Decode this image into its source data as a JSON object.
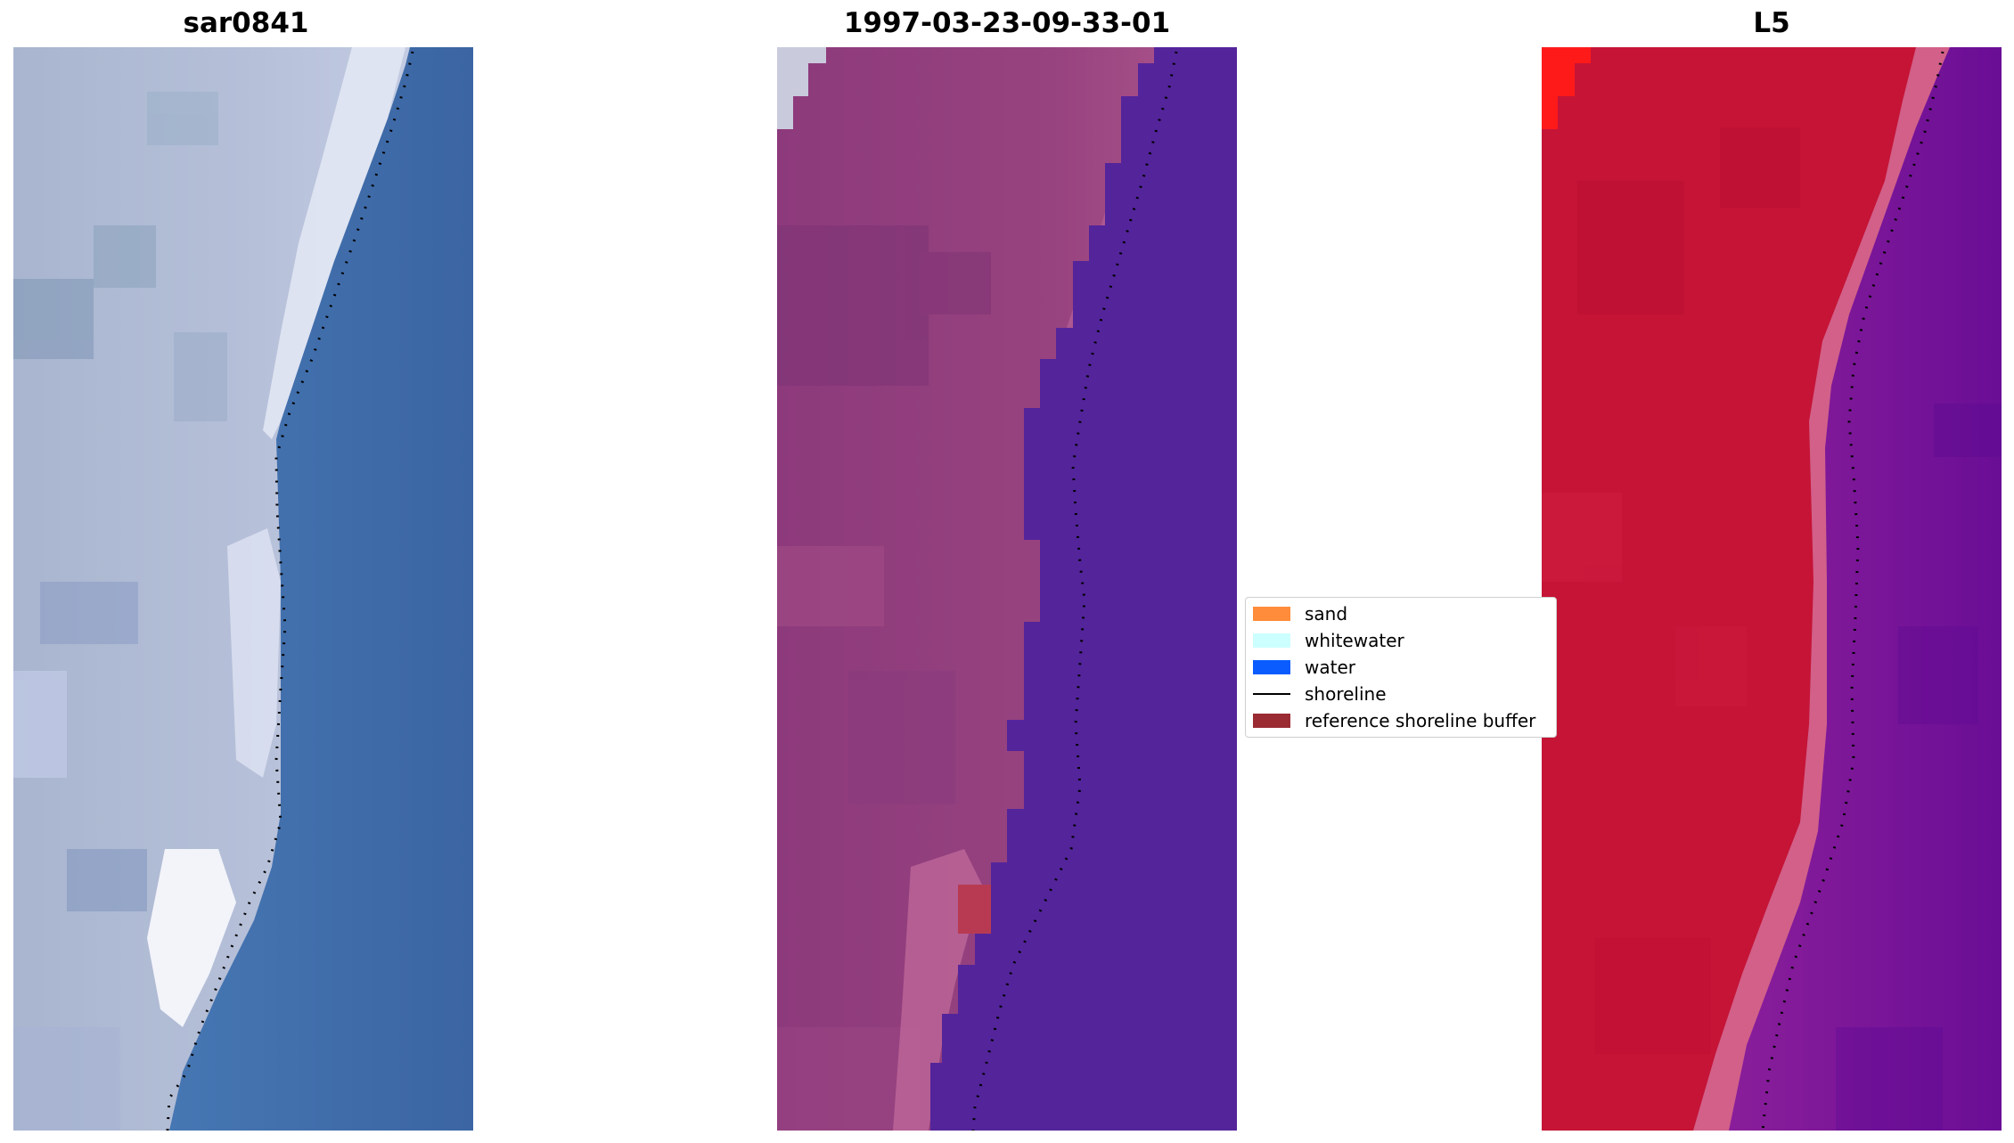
{
  "panels": [
    {
      "title": "sar0841",
      "kind": "rgb"
    },
    {
      "title": "1997-03-23-09-33-01",
      "kind": "classified"
    },
    {
      "title": "L5",
      "kind": "index"
    }
  ],
  "legend": {
    "items": [
      {
        "label": "sand",
        "type": "patch",
        "color": "#ff8c3a"
      },
      {
        "label": "whitewater",
        "type": "patch",
        "color": "#ccffff"
      },
      {
        "label": "water",
        "type": "patch",
        "color": "#0a5cff"
      },
      {
        "label": "shoreline",
        "type": "line",
        "color": "#000000"
      },
      {
        "label": "reference shoreline buffer",
        "type": "patch",
        "color": "#9b2b33"
      }
    ]
  },
  "colors": {
    "rgb_land": "#b3bdd6",
    "rgb_water": "#3d6aa8",
    "classified_land": "#8e3a7c",
    "classified_water": "#54249b",
    "index_land": "#c51436",
    "index_water": "#74159a"
  }
}
